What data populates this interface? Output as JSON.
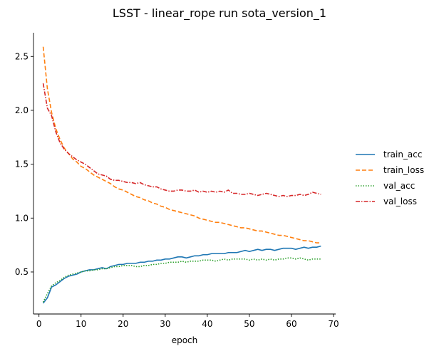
{
  "chart_data": {
    "type": "line",
    "title": "LSST - linear_rope run sota_version_1",
    "xlabel": "epoch",
    "ylabel": "",
    "xlim": [
      -1.3,
      70.5
    ],
    "ylim": [
      0.11,
      2.72
    ],
    "xticks": [
      0,
      10,
      20,
      30,
      40,
      50,
      60,
      70
    ],
    "yticks": [
      0.5,
      1.0,
      1.5,
      2.0,
      2.5
    ],
    "grid": false,
    "legend_position": "right",
    "x": [
      1,
      2,
      3,
      4,
      5,
      6,
      7,
      8,
      9,
      10,
      11,
      12,
      13,
      14,
      15,
      16,
      17,
      18,
      19,
      20,
      21,
      22,
      23,
      24,
      25,
      26,
      27,
      28,
      29,
      30,
      31,
      32,
      33,
      34,
      35,
      36,
      37,
      38,
      39,
      40,
      41,
      42,
      43,
      44,
      45,
      46,
      47,
      48,
      49,
      50,
      51,
      52,
      53,
      54,
      55,
      56,
      57,
      58,
      59,
      60,
      61,
      62,
      63,
      64,
      65,
      66,
      67
    ],
    "series": [
      {
        "name": "train_acc",
        "color": "#1f77b4",
        "dash": "solid",
        "values": [
          0.21,
          0.26,
          0.36,
          0.38,
          0.41,
          0.44,
          0.46,
          0.47,
          0.48,
          0.5,
          0.51,
          0.52,
          0.52,
          0.53,
          0.54,
          0.53,
          0.55,
          0.56,
          0.57,
          0.57,
          0.58,
          0.58,
          0.58,
          0.59,
          0.59,
          0.6,
          0.6,
          0.61,
          0.61,
          0.62,
          0.62,
          0.63,
          0.64,
          0.64,
          0.63,
          0.64,
          0.65,
          0.65,
          0.66,
          0.66,
          0.67,
          0.67,
          0.67,
          0.67,
          0.68,
          0.68,
          0.68,
          0.69,
          0.7,
          0.69,
          0.7,
          0.71,
          0.7,
          0.71,
          0.71,
          0.7,
          0.71,
          0.72,
          0.72,
          0.72,
          0.71,
          0.72,
          0.73,
          0.72,
          0.73,
          0.73,
          0.74
        ]
      },
      {
        "name": "train_loss",
        "color": "#ff7f0e",
        "dash": "6,3",
        "values": [
          2.59,
          2.2,
          1.98,
          1.83,
          1.73,
          1.65,
          1.6,
          1.55,
          1.52,
          1.48,
          1.46,
          1.43,
          1.4,
          1.38,
          1.36,
          1.34,
          1.32,
          1.29,
          1.27,
          1.26,
          1.24,
          1.22,
          1.2,
          1.19,
          1.17,
          1.16,
          1.14,
          1.13,
          1.11,
          1.1,
          1.08,
          1.07,
          1.06,
          1.05,
          1.04,
          1.03,
          1.02,
          1.0,
          0.99,
          0.98,
          0.97,
          0.96,
          0.96,
          0.95,
          0.94,
          0.93,
          0.92,
          0.91,
          0.91,
          0.9,
          0.89,
          0.88,
          0.88,
          0.87,
          0.86,
          0.85,
          0.84,
          0.84,
          0.83,
          0.82,
          0.81,
          0.8,
          0.79,
          0.79,
          0.78,
          0.77,
          0.77
        ]
      },
      {
        "name": "val_acc",
        "color": "#2ca02c",
        "dash": "1.5,2",
        "values": [
          0.22,
          0.3,
          0.37,
          0.4,
          0.42,
          0.45,
          0.47,
          0.48,
          0.49,
          0.5,
          0.51,
          0.51,
          0.52,
          0.52,
          0.53,
          0.53,
          0.54,
          0.55,
          0.55,
          0.56,
          0.56,
          0.56,
          0.55,
          0.55,
          0.56,
          0.56,
          0.57,
          0.57,
          0.58,
          0.58,
          0.59,
          0.59,
          0.59,
          0.6,
          0.59,
          0.6,
          0.6,
          0.6,
          0.61,
          0.61,
          0.61,
          0.6,
          0.61,
          0.62,
          0.61,
          0.62,
          0.62,
          0.62,
          0.62,
          0.61,
          0.62,
          0.61,
          0.62,
          0.61,
          0.62,
          0.61,
          0.62,
          0.62,
          0.63,
          0.63,
          0.62,
          0.63,
          0.62,
          0.61,
          0.62,
          0.62,
          0.62
        ]
      },
      {
        "name": "val_loss",
        "color": "#d62728",
        "dash": "6,2,1.5,2",
        "values": [
          2.25,
          2.02,
          1.95,
          1.8,
          1.7,
          1.64,
          1.6,
          1.57,
          1.54,
          1.52,
          1.5,
          1.47,
          1.44,
          1.41,
          1.4,
          1.39,
          1.36,
          1.35,
          1.35,
          1.34,
          1.33,
          1.33,
          1.32,
          1.33,
          1.31,
          1.3,
          1.29,
          1.29,
          1.27,
          1.26,
          1.25,
          1.25,
          1.26,
          1.26,
          1.25,
          1.25,
          1.26,
          1.24,
          1.25,
          1.24,
          1.25,
          1.24,
          1.25,
          1.24,
          1.26,
          1.23,
          1.23,
          1.22,
          1.22,
          1.23,
          1.22,
          1.21,
          1.22,
          1.23,
          1.22,
          1.21,
          1.2,
          1.21,
          1.2,
          1.21,
          1.21,
          1.22,
          1.21,
          1.22,
          1.24,
          1.23,
          1.22
        ]
      }
    ]
  }
}
